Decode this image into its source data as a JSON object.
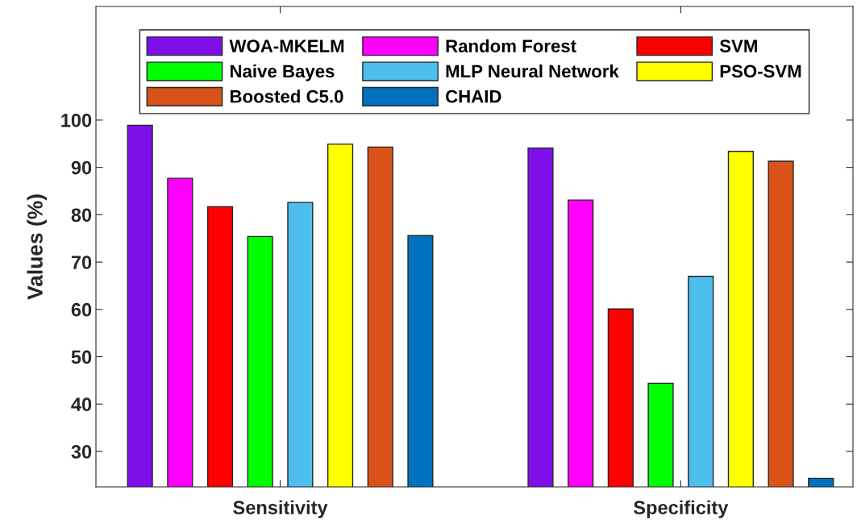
{
  "chart_data": {
    "type": "bar",
    "ylabel": "Values (%)",
    "categories": [
      "Sensitivity",
      "Specificity"
    ],
    "series": [
      {
        "name": "WOA-MKELM",
        "color": "#7e0fe8",
        "values": [
          98.9,
          94.1
        ]
      },
      {
        "name": "Random Forest",
        "color": "#ff00ff",
        "values": [
          87.7,
          83.1
        ]
      },
      {
        "name": "SVM",
        "color": "#ff0000",
        "values": [
          81.7,
          60.1
        ]
      },
      {
        "name": "Naive Bayes",
        "color": "#00ff00",
        "values": [
          75.4,
          44.4
        ]
      },
      {
        "name": "MLP Neural Network",
        "color": "#4dbeee",
        "values": [
          82.6,
          67.0
        ]
      },
      {
        "name": "PSO-SVM",
        "color": "#ffff00",
        "values": [
          94.9,
          93.4
        ]
      },
      {
        "name": "Boosted C5.0",
        "color": "#d95319",
        "values": [
          94.3,
          91.3
        ]
      },
      {
        "name": "CHAID",
        "color": "#0072bd",
        "values": [
          75.6,
          24.3
        ]
      }
    ],
    "ylim": [
      22.5,
      124
    ],
    "yticks": [
      30,
      40,
      50,
      60,
      70,
      80,
      90,
      100
    ],
    "legend": "top",
    "grid": false
  }
}
